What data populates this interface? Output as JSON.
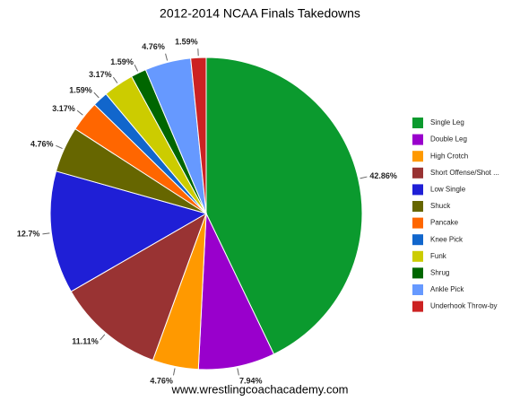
{
  "chart_data": {
    "type": "pie",
    "title": "2012-2014 NCAA Finals Takedowns",
    "source": "www.wrestlingcoachacademy.com",
    "categories": [
      "Single Leg",
      "Double Leg",
      "High Crotch",
      "Short Offense/Shot ...",
      "Low Single",
      "Shuck",
      "Pancake",
      "Knee Pick",
      "Funk",
      "Shrug",
      "Ankle Pick",
      "Underhook Throw-by"
    ],
    "values": [
      42.86,
      7.94,
      4.76,
      11.11,
      12.7,
      4.76,
      3.17,
      1.59,
      3.17,
      1.59,
      4.76,
      1.59
    ],
    "value_labels": [
      "42.86%",
      "7.94%",
      "4.76%",
      "11.11%",
      "12.7%",
      "4.76%",
      "3.17%",
      "1.59%",
      "3.17%",
      "1.59%",
      "4.76%",
      "1.59%"
    ],
    "colors": [
      "#0b9a2e",
      "#9900cc",
      "#ff9900",
      "#993333",
      "#1f1fd6",
      "#666600",
      "#ff6600",
      "#1166cc",
      "#cccc00",
      "#006600",
      "#6699ff",
      "#cc2222"
    ],
    "legend": "right"
  }
}
